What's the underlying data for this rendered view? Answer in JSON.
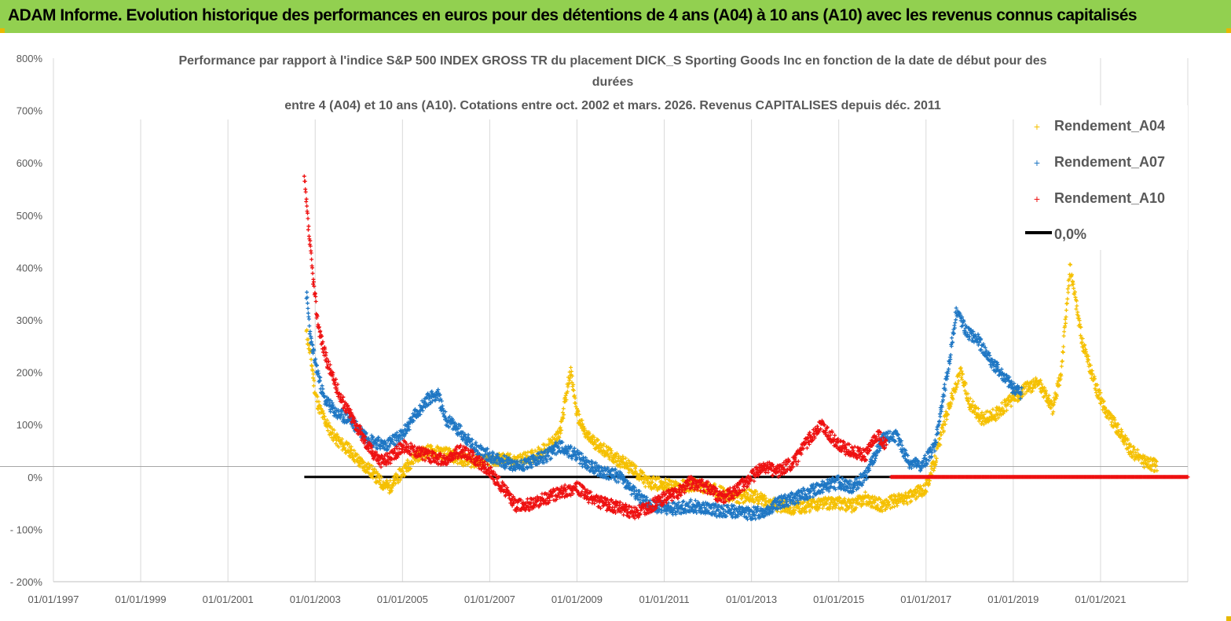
{
  "banner": {
    "title": "ADAM Informe. Evolution historique des performances en euros pour des détentions de 4 ans (A04) à 10 ans (A10) avec les revenus connus capitalisés"
  },
  "colors": {
    "banner_bg": "#92d050",
    "a04": "#f5c000",
    "a07": "#1f77c4",
    "a10": "#ee1111",
    "zero": "#000000",
    "grid": "#d9d9d9"
  },
  "chart_data": {
    "type": "scatter",
    "title_lines": [
      "Performance par rapport à l'indice S&P 500 INDEX GROSS TR  du placement DICK_S Sporting Goods Inc en fonction de la date de début pour des",
      "durées",
      "entre 4 (A04) et 10 ans (A10). Cotations entre oct. 2002 et mars. 2026. Revenus CAPITALISES depuis déc. 2011"
    ],
    "x_ticks": [
      "01/01/1997",
      "01/01/1999",
      "01/01/2001",
      "01/01/2003",
      "01/01/2005",
      "01/01/2007",
      "01/01/2009",
      "01/01/2011",
      "01/01/2013",
      "01/01/2015",
      "01/01/2017",
      "01/01/2019",
      "01/01/2021"
    ],
    "y_ticks": [
      "800%",
      "700%",
      "600%",
      "500%",
      "400%",
      "300%",
      "200%",
      "100%",
      "0%",
      "- 100%",
      "- 200%"
    ],
    "ylim": [
      -200,
      800
    ],
    "xlim": [
      1997.0,
      2023.0
    ],
    "grid": true,
    "legend_position": "top-right",
    "series": [
      {
        "name": "Rendement_A04",
        "marker": "+",
        "x": [
          2002.8,
          2002.9,
          2003.0,
          2003.1,
          2003.3,
          2003.5,
          2003.8,
          2004.0,
          2004.3,
          2004.5,
          2004.7,
          2005.0,
          2005.3,
          2005.6,
          2006.0,
          2006.3,
          2006.6,
          2007.0,
          2007.3,
          2007.6,
          2008.0,
          2008.3,
          2008.6,
          2008.85,
          2009.0,
          2009.2,
          2009.5,
          2009.8,
          2010.0,
          2010.3,
          2010.6,
          2011.0,
          2011.3,
          2011.6,
          2012.0,
          2012.3,
          2012.6,
          2013.0,
          2013.3,
          2013.6,
          2014.0,
          2014.3,
          2014.6,
          2015.0,
          2015.3,
          2015.6,
          2016.0,
          2016.3,
          2016.6,
          2017.0,
          2017.2,
          2017.5,
          2017.8,
          2018.0,
          2018.3,
          2018.6,
          2019.0,
          2019.3,
          2019.6,
          2019.9,
          2020.1,
          2020.3,
          2020.6,
          2020.9,
          2021.1,
          2021.4,
          2021.7,
          2022.0,
          2022.3
        ],
        "values": [
          275,
          230,
          160,
          130,
          95,
          70,
          50,
          30,
          10,
          -10,
          -20,
          10,
          40,
          50,
          45,
          35,
          30,
          30,
          35,
          30,
          40,
          55,
          80,
          205,
          120,
          80,
          60,
          40,
          30,
          15,
          -10,
          -15,
          -20,
          -15,
          -20,
          -30,
          -40,
          -35,
          -45,
          -55,
          -60,
          -55,
          -50,
          -50,
          -55,
          -40,
          -55,
          -45,
          -40,
          -20,
          30,
          130,
          200,
          140,
          110,
          120,
          150,
          170,
          180,
          130,
          200,
          400,
          250,
          170,
          130,
          90,
          50,
          30,
          20
        ]
      },
      {
        "name": "Rendement_A07",
        "marker": "+",
        "x": [
          2002.8,
          2002.9,
          2003.0,
          2003.2,
          2003.5,
          2003.8,
          2004.0,
          2004.3,
          2004.6,
          2005.0,
          2005.3,
          2005.6,
          2005.8,
          2006.0,
          2006.3,
          2006.6,
          2007.0,
          2007.3,
          2007.6,
          2008.0,
          2008.3,
          2008.6,
          2009.0,
          2009.3,
          2009.6,
          2010.0,
          2010.3,
          2010.6,
          2011.0,
          2011.3,
          2011.6,
          2012.0,
          2012.3,
          2012.6,
          2013.0,
          2013.3,
          2013.6,
          2014.0,
          2014.3,
          2014.6,
          2015.0,
          2015.3,
          2015.6,
          2016.0,
          2016.3,
          2016.6,
          2016.9,
          2017.2,
          2017.5,
          2017.7,
          2017.9,
          2018.2,
          2018.5,
          2018.8,
          2019.0,
          2019.2
        ],
        "values": [
          350,
          260,
          220,
          150,
          120,
          110,
          90,
          70,
          60,
          80,
          120,
          150,
          160,
          110,
          90,
          60,
          40,
          30,
          20,
          30,
          40,
          60,
          40,
          20,
          10,
          0,
          -30,
          -50,
          -60,
          -60,
          -55,
          -60,
          -65,
          -65,
          -70,
          -65,
          -50,
          -40,
          -30,
          -20,
          -10,
          -20,
          0,
          70,
          80,
          30,
          20,
          60,
          200,
          320,
          280,
          260,
          220,
          190,
          170,
          160
        ]
      },
      {
        "name": "Rendement_A10",
        "marker": "+",
        "x": [
          2002.75,
          2002.85,
          2002.95,
          2003.05,
          2003.2,
          2003.4,
          2003.6,
          2003.8,
          2004.0,
          2004.2,
          2004.5,
          2004.8,
          2005.0,
          2005.3,
          2005.6,
          2006.0,
          2006.3,
          2006.6,
          2007.0,
          2007.3,
          2007.6,
          2008.0,
          2008.3,
          2008.6,
          2009.0,
          2009.3,
          2009.6,
          2010.0,
          2010.3,
          2010.6,
          2011.0,
          2011.3,
          2011.6,
          2012.0,
          2012.3,
          2012.6,
          2013.0,
          2013.3,
          2013.6,
          2014.0,
          2014.3,
          2014.6,
          2015.0,
          2015.3,
          2015.6,
          2015.9,
          2016.1
        ],
        "values": [
          570,
          470,
          380,
          300,
          240,
          190,
          150,
          120,
          90,
          60,
          30,
          40,
          60,
          50,
          40,
          30,
          50,
          40,
          10,
          -20,
          -55,
          -50,
          -40,
          -30,
          -20,
          -40,
          -50,
          -60,
          -70,
          -60,
          -40,
          -30,
          -10,
          -20,
          -40,
          -30,
          0,
          20,
          10,
          30,
          70,
          100,
          60,
          50,
          40,
          80,
          60
        ]
      },
      {
        "name": "0,0%",
        "marker": "line",
        "x": [
          2002.75,
          2016.2
        ],
        "values": [
          0,
          0
        ]
      }
    ],
    "a10_zero_tail": {
      "x": [
        2016.2,
        2023.0
      ],
      "values": [
        0,
        0
      ]
    },
    "reference_line": {
      "x": [
        1997.0,
        2023.0
      ],
      "values": [
        20,
        20
      ]
    }
  }
}
